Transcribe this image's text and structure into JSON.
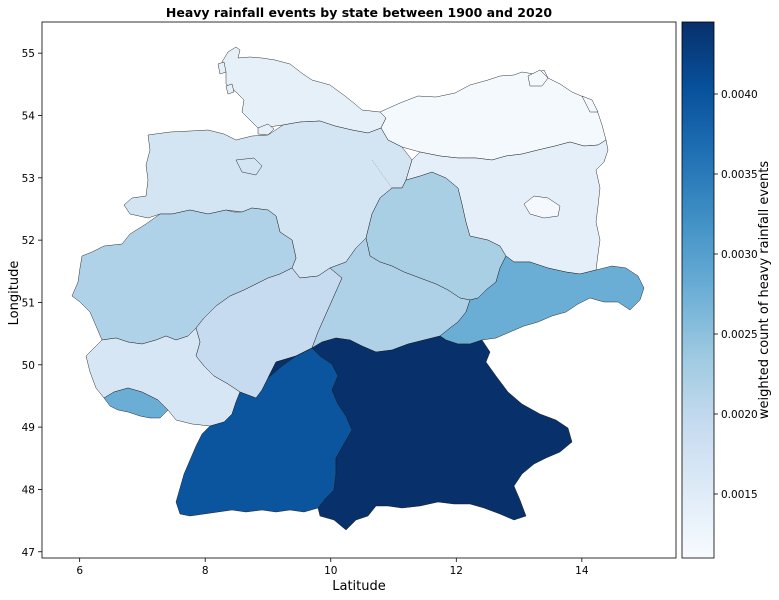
{
  "chart_data": {
    "type": "choropleth",
    "title": "Heavy rainfall events by state between 1900 and 2020",
    "xlabel": "Latitude",
    "ylabel": "Longitude",
    "xlim": [
      5.4,
      15.5
    ],
    "ylim": [
      46.9,
      55.5
    ],
    "x_ticks": [
      6,
      8,
      10,
      12,
      14
    ],
    "y_ticks": [
      47,
      48,
      49,
      50,
      51,
      52,
      53,
      54,
      55
    ],
    "colorbar": {
      "label": "weighted count of heavy rainfall events",
      "colormap": "Blues",
      "vmin": 0.0011,
      "vmax": 0.00445,
      "ticks": [
        0.0015,
        0.002,
        0.0025,
        0.003,
        0.0035,
        0.004
      ],
      "tick_labels": [
        "0.0015",
        "0.0020",
        "0.0025",
        "0.0030",
        "0.0035",
        "0.0040"
      ]
    },
    "regions": [
      {
        "name": "Bayern",
        "value": 0.00445,
        "color": "#08306b"
      },
      {
        "name": "Baden-Württemberg",
        "value": 0.0041,
        "color": "#0b559f"
      },
      {
        "name": "Sachsen",
        "value": 0.0027,
        "color": "#6aaed6"
      },
      {
        "name": "Saarland",
        "value": 0.0027,
        "color": "#6aaed6"
      },
      {
        "name": "Nordrhein-Westfalen",
        "value": 0.0023,
        "color": "#b0d2e8"
      },
      {
        "name": "Thüringen",
        "value": 0.0023,
        "color": "#afd1e7"
      },
      {
        "name": "Sachsen-Anhalt",
        "value": 0.00235,
        "color": "#a9cfe5"
      },
      {
        "name": "Hessen",
        "value": 0.0021,
        "color": "#c6dbef"
      },
      {
        "name": "Niedersachsen",
        "value": 0.0018,
        "color": "#d3e4f3"
      },
      {
        "name": "Bremen",
        "value": 0.0018,
        "color": "#d3e4f3"
      },
      {
        "name": "Rheinland-Pfalz",
        "value": 0.0017,
        "color": "#d6e6f4"
      },
      {
        "name": "Brandenburg",
        "value": 0.00135,
        "color": "#e5eff9"
      },
      {
        "name": "Schleswig-Holstein",
        "value": 0.00135,
        "color": "#e6f0f9"
      },
      {
        "name": "Hamburg",
        "value": 0.00135,
        "color": "#e6f0f9"
      },
      {
        "name": "Mecklenburg-Vorpommern",
        "value": 0.0011,
        "color": "#f4f9fe"
      },
      {
        "name": "Berlin",
        "value": 0.0011,
        "color": "#f5f9fe"
      }
    ]
  }
}
